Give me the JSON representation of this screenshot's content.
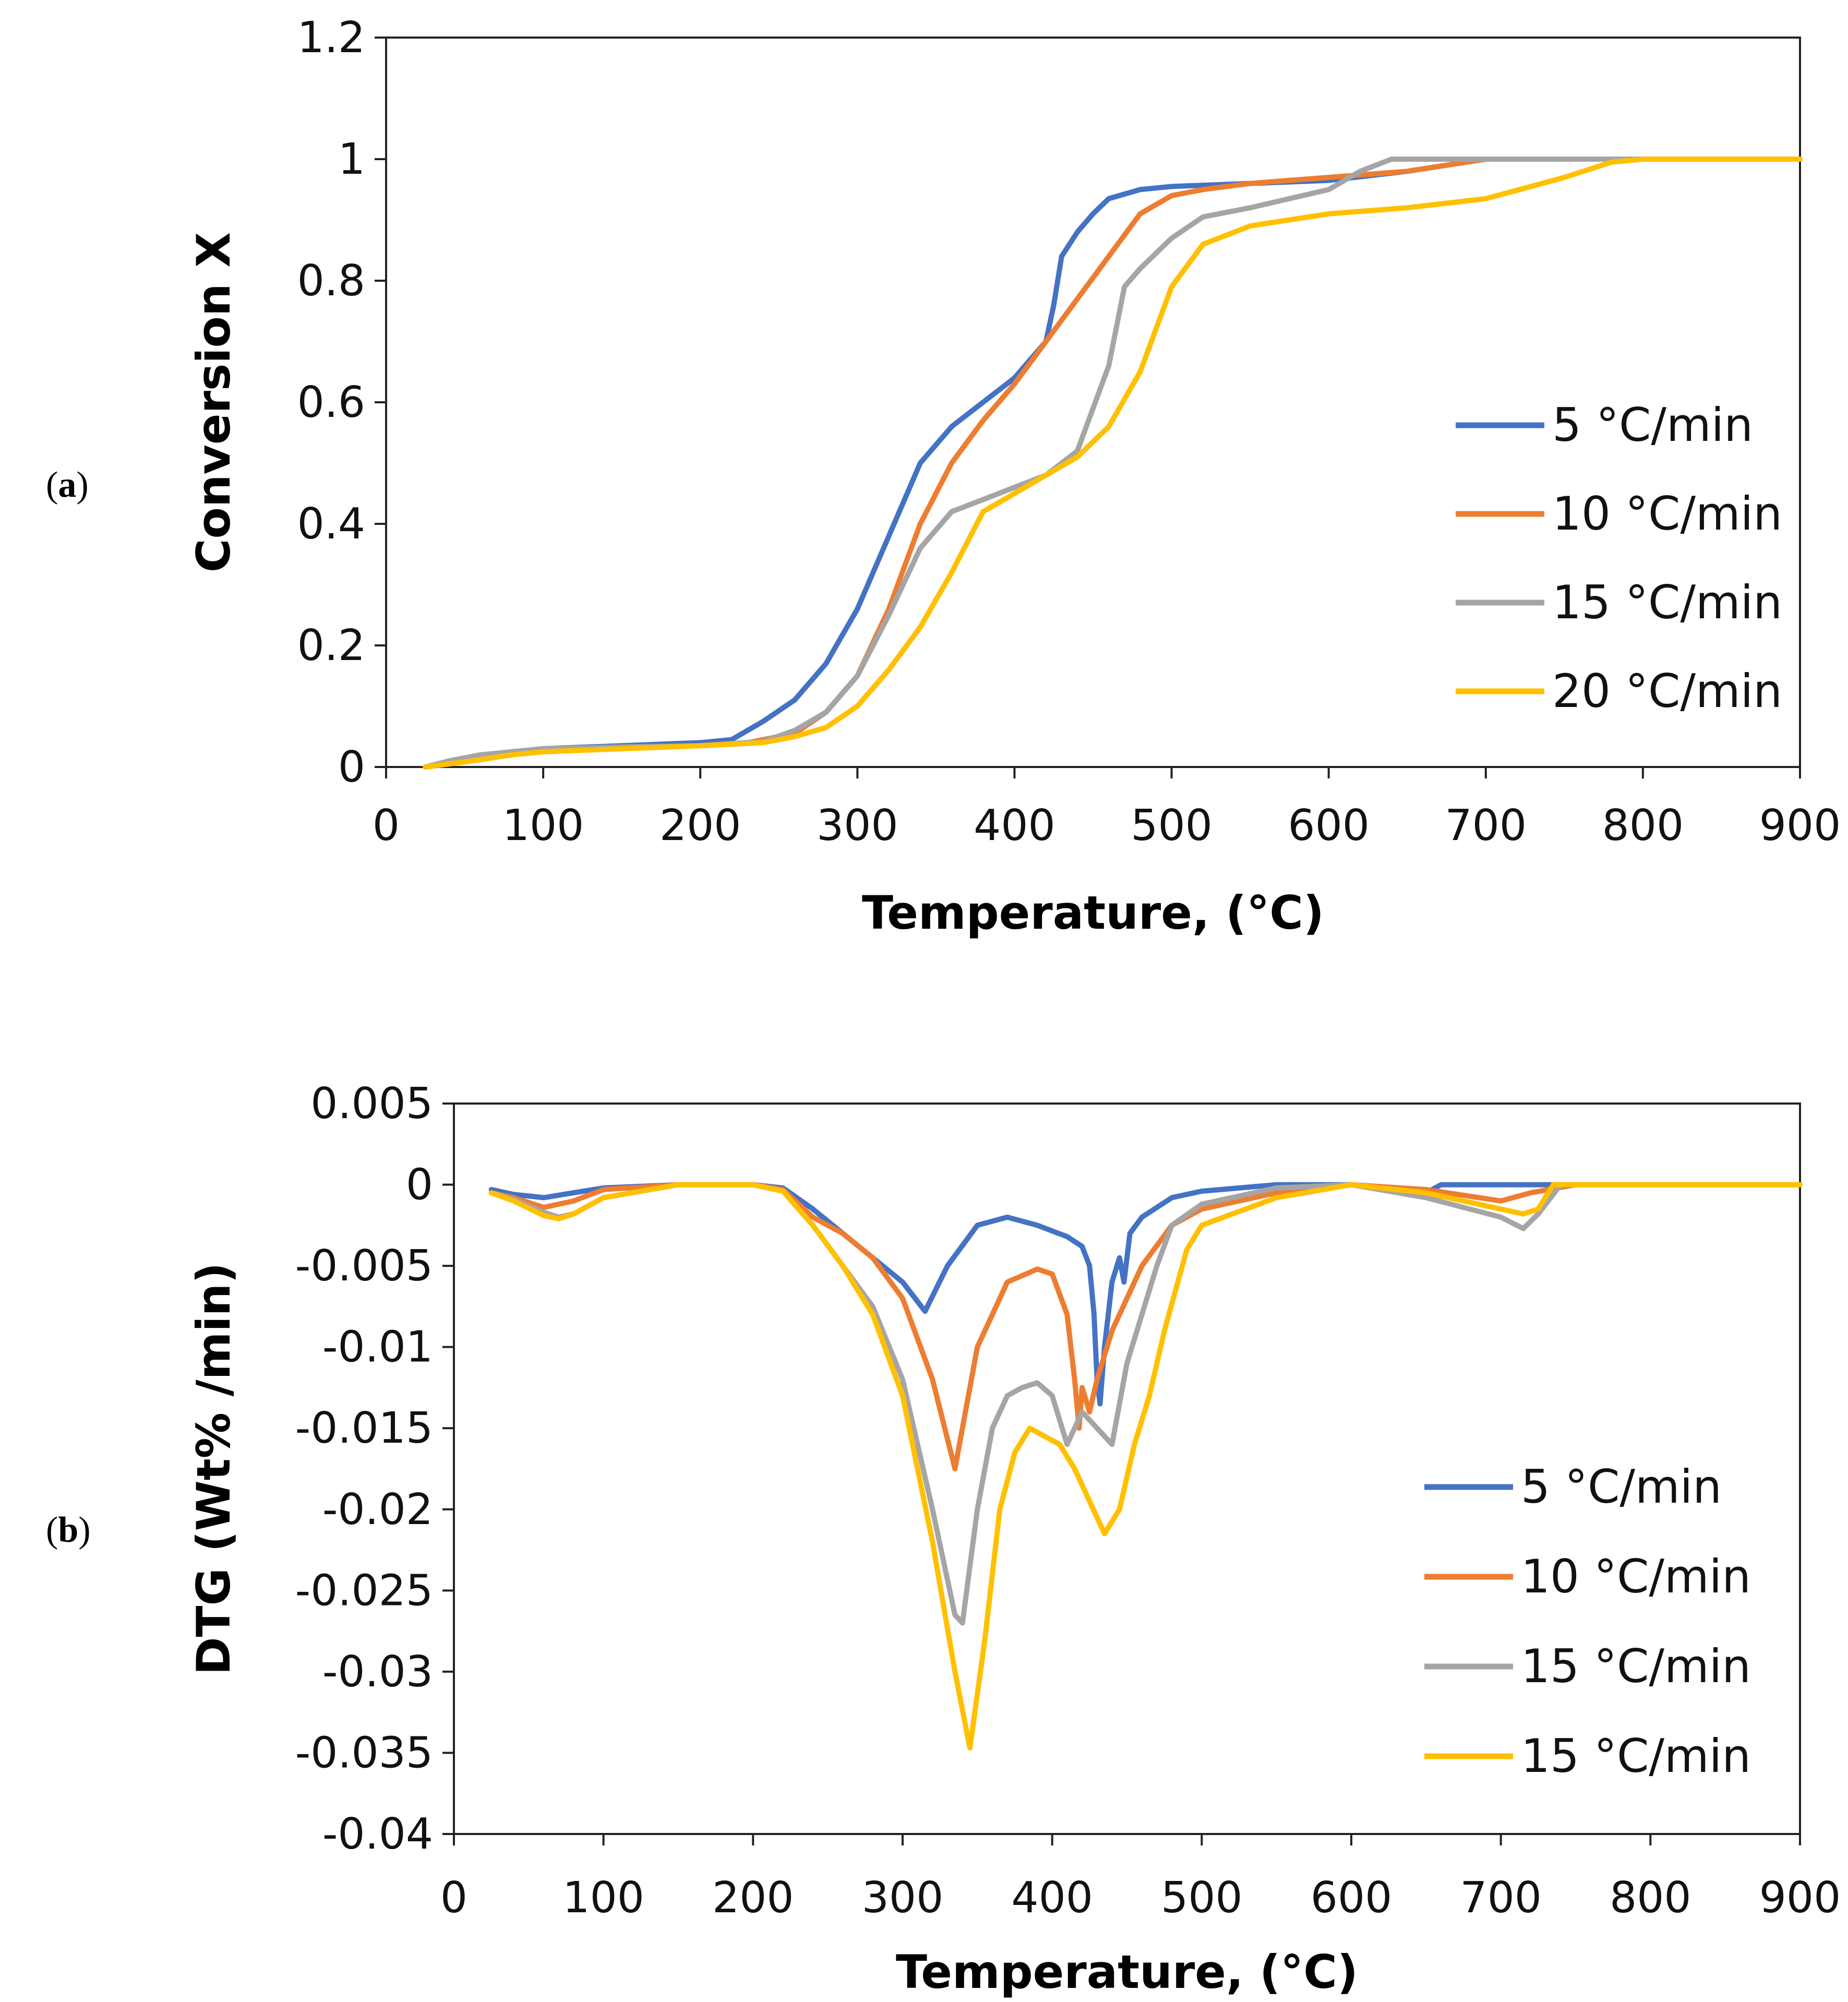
{
  "panels": [
    {
      "id": "a",
      "label_open": "(",
      "label_letter": "a",
      "label_close": ")"
    },
    {
      "id": "b",
      "label_open": "(",
      "label_letter": "b",
      "label_close": ")"
    }
  ],
  "chart_data": [
    {
      "type": "line",
      "title": "",
      "xlabel": "Temperature, (°C)",
      "ylabel": "Conversion X",
      "xlim": [
        0,
        900
      ],
      "ylim": [
        0,
        1.2
      ],
      "x_ticks": [
        0,
        100,
        200,
        300,
        400,
        500,
        600,
        700,
        800,
        900
      ],
      "x_tick_labels": [
        "0",
        "100",
        "200",
        "300",
        "400",
        "500",
        "600",
        "700",
        "800",
        "900"
      ],
      "y_ticks": [
        0,
        0.2,
        0.4,
        0.6,
        0.8,
        1.0,
        1.2
      ],
      "y_tick_labels": [
        "0",
        "0.2",
        "0.4",
        "0.6",
        "0.8",
        "1",
        "1.2"
      ],
      "grid": false,
      "legend_position": "right",
      "series": [
        {
          "name": "5 °C/min",
          "color": "#4472C4",
          "x": [
            25,
            40,
            60,
            80,
            100,
            150,
            200,
            220,
            240,
            260,
            280,
            300,
            320,
            340,
            360,
            380,
            400,
            420,
            425,
            430,
            440,
            450,
            460,
            480,
            500,
            550,
            600,
            650,
            700,
            750,
            800,
            850,
            900
          ],
          "y": [
            0,
            0.005,
            0.015,
            0.025,
            0.03,
            0.035,
            0.04,
            0.045,
            0.075,
            0.11,
            0.17,
            0.26,
            0.38,
            0.5,
            0.56,
            0.6,
            0.64,
            0.7,
            0.76,
            0.84,
            0.88,
            0.91,
            0.935,
            0.95,
            0.955,
            0.96,
            0.965,
            0.98,
            1.0,
            1.0,
            1.0,
            1.0,
            1.0
          ]
        },
        {
          "name": "10 °C/min",
          "color": "#ED7D31",
          "x": [
            25,
            40,
            60,
            80,
            100,
            150,
            200,
            230,
            260,
            280,
            300,
            320,
            340,
            360,
            380,
            400,
            420,
            440,
            460,
            480,
            500,
            520,
            550,
            600,
            650,
            700,
            750,
            800,
            850,
            900
          ],
          "y": [
            0,
            0.005,
            0.012,
            0.022,
            0.028,
            0.032,
            0.035,
            0.04,
            0.055,
            0.09,
            0.15,
            0.26,
            0.4,
            0.5,
            0.57,
            0.63,
            0.7,
            0.77,
            0.84,
            0.91,
            0.94,
            0.95,
            0.96,
            0.97,
            0.98,
            1.0,
            1.0,
            1.0,
            1.0,
            1.0
          ]
        },
        {
          "name": "15 °C/min",
          "color": "#A5A5A5",
          "x": [
            25,
            40,
            60,
            80,
            100,
            150,
            200,
            240,
            260,
            280,
            300,
            320,
            340,
            360,
            380,
            400,
            420,
            440,
            460,
            470,
            480,
            500,
            520,
            550,
            600,
            620,
            640,
            700,
            750,
            800,
            850,
            900
          ],
          "y": [
            0,
            0.01,
            0.02,
            0.025,
            0.03,
            0.033,
            0.035,
            0.042,
            0.06,
            0.09,
            0.15,
            0.25,
            0.36,
            0.42,
            0.44,
            0.46,
            0.48,
            0.52,
            0.66,
            0.79,
            0.82,
            0.87,
            0.905,
            0.92,
            0.95,
            0.98,
            1.0,
            1.0,
            1.0,
            1.0,
            1.0,
            1.0
          ]
        },
        {
          "name": "20 °C/min",
          "color": "#FFC000",
          "x": [
            25,
            40,
            60,
            80,
            100,
            150,
            200,
            240,
            260,
            280,
            300,
            320,
            340,
            360,
            380,
            400,
            420,
            440,
            460,
            480,
            500,
            520,
            550,
            600,
            650,
            700,
            750,
            780,
            800,
            850,
            900
          ],
          "y": [
            0,
            0.005,
            0.012,
            0.02,
            0.025,
            0.03,
            0.035,
            0.04,
            0.05,
            0.065,
            0.1,
            0.16,
            0.23,
            0.32,
            0.42,
            0.45,
            0.48,
            0.51,
            0.56,
            0.65,
            0.79,
            0.86,
            0.89,
            0.91,
            0.92,
            0.935,
            0.97,
            0.995,
            1.0,
            1.0,
            1.0
          ]
        }
      ]
    },
    {
      "type": "line",
      "title": "",
      "xlabel": "Temperature, (°C)",
      "ylabel": "DTG (Wt% /min)",
      "xlim": [
        0,
        900
      ],
      "ylim": [
        -0.04,
        0.005
      ],
      "x_ticks": [
        0,
        100,
        200,
        300,
        400,
        500,
        600,
        700,
        800,
        900
      ],
      "x_tick_labels": [
        "0",
        "100",
        "200",
        "300",
        "400",
        "500",
        "600",
        "700",
        "800",
        "900"
      ],
      "y_ticks": [
        0.005,
        0,
        -0.005,
        -0.01,
        -0.015,
        -0.02,
        -0.025,
        -0.03,
        -0.035,
        -0.04
      ],
      "y_tick_labels": [
        "0.005",
        "0",
        "-0.005",
        "-0.01",
        "-0.015",
        "-0.02",
        "-0.025",
        "-0.03",
        "-0.035",
        "-0.04"
      ],
      "grid": false,
      "legend_position": "right",
      "series": [
        {
          "name": "5 °C/min",
          "color": "#4472C4",
          "x": [
            25,
            40,
            60,
            80,
            100,
            150,
            200,
            220,
            240,
            260,
            280,
            300,
            315,
            330,
            350,
            370,
            390,
            410,
            420,
            425,
            428,
            430,
            432,
            435,
            440,
            445,
            448,
            452,
            460,
            480,
            500,
            550,
            600,
            650,
            660,
            670,
            700,
            750,
            800,
            850,
            900
          ],
          "y": [
            -0.0003,
            -0.0006,
            -0.0008,
            -0.0005,
            -0.0002,
            0,
            0,
            -0.0002,
            -0.0015,
            -0.003,
            -0.0045,
            -0.006,
            -0.0078,
            -0.005,
            -0.0025,
            -0.002,
            -0.0025,
            -0.0032,
            -0.0038,
            -0.005,
            -0.008,
            -0.012,
            -0.0135,
            -0.01,
            -0.006,
            -0.0045,
            -0.006,
            -0.003,
            -0.002,
            -0.0008,
            -0.0004,
            0,
            0,
            -0.0005,
            0,
            0,
            0,
            0,
            0,
            0,
            0
          ]
        },
        {
          "name": "10 °C/min",
          "color": "#ED7D31",
          "x": [
            25,
            40,
            60,
            80,
            100,
            150,
            200,
            220,
            240,
            260,
            280,
            300,
            320,
            335,
            350,
            370,
            390,
            400,
            410,
            415,
            418,
            420,
            425,
            430,
            440,
            460,
            480,
            500,
            550,
            600,
            650,
            700,
            720,
            750,
            800,
            850,
            900
          ],
          "y": [
            -0.0005,
            -0.0008,
            -0.0014,
            -0.001,
            -0.0003,
            0,
            0,
            -0.0003,
            -0.002,
            -0.003,
            -0.0045,
            -0.007,
            -0.012,
            -0.0175,
            -0.01,
            -0.006,
            -0.0052,
            -0.0055,
            -0.008,
            -0.012,
            -0.015,
            -0.0125,
            -0.014,
            -0.012,
            -0.009,
            -0.005,
            -0.0025,
            -0.0015,
            -0.0005,
            0,
            -0.0003,
            -0.001,
            -0.0005,
            0,
            0,
            0,
            0
          ]
        },
        {
          "name": "15 °C/min",
          "color": "#A5A5A5",
          "x": [
            25,
            40,
            60,
            70,
            80,
            100,
            150,
            200,
            220,
            240,
            260,
            280,
            300,
            320,
            335,
            340,
            350,
            360,
            370,
            380,
            390,
            400,
            410,
            420,
            430,
            440,
            450,
            460,
            470,
            480,
            500,
            550,
            600,
            650,
            700,
            715,
            725,
            740,
            800,
            850,
            900
          ],
          "y": [
            -0.0005,
            -0.0009,
            -0.0017,
            -0.002,
            -0.0018,
            -0.0008,
            0,
            0,
            -0.0004,
            -0.0025,
            -0.005,
            -0.0075,
            -0.012,
            -0.02,
            -0.0265,
            -0.027,
            -0.02,
            -0.015,
            -0.013,
            -0.0125,
            -0.0122,
            -0.013,
            -0.016,
            -0.014,
            -0.015,
            -0.016,
            -0.011,
            -0.008,
            -0.005,
            -0.0025,
            -0.0012,
            -0.0002,
            0,
            -0.0008,
            -0.002,
            -0.0027,
            -0.0018,
            0,
            0,
            0,
            0
          ]
        },
        {
          "name": "15 °C/min",
          "color": "#FFC000",
          "x": [
            25,
            40,
            60,
            70,
            80,
            100,
            150,
            200,
            220,
            240,
            260,
            280,
            300,
            320,
            335,
            345,
            355,
            365,
            375,
            385,
            395,
            405,
            415,
            425,
            435,
            445,
            455,
            465,
            475,
            490,
            500,
            550,
            600,
            650,
            700,
            715,
            725,
            735,
            800,
            850,
            900
          ],
          "y": [
            -0.0005,
            -0.001,
            -0.0019,
            -0.0021,
            -0.0018,
            -0.0008,
            0,
            0,
            -0.0004,
            -0.0025,
            -0.005,
            -0.008,
            -0.013,
            -0.022,
            -0.03,
            -0.0347,
            -0.028,
            -0.02,
            -0.0165,
            -0.015,
            -0.0155,
            -0.016,
            -0.0175,
            -0.0195,
            -0.0215,
            -0.02,
            -0.016,
            -0.013,
            -0.009,
            -0.004,
            -0.0025,
            -0.0008,
            0,
            -0.0005,
            -0.0015,
            -0.0018,
            -0.0015,
            0,
            0,
            0,
            0
          ]
        }
      ]
    }
  ]
}
